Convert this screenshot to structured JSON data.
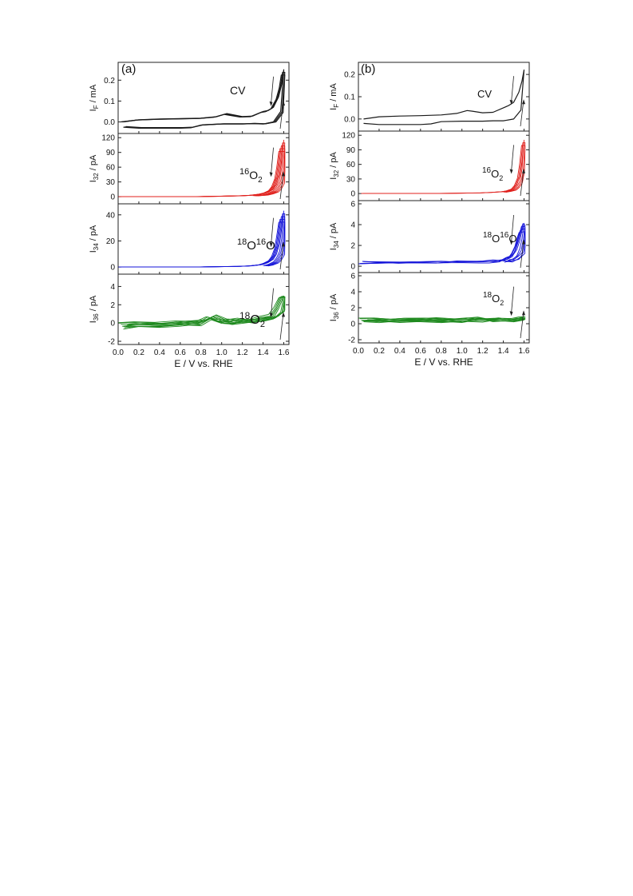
{
  "figure": {
    "xlabel": "E / V vs. RHE",
    "xticks": [
      "0.0",
      "0.2",
      "0.4",
      "0.6",
      "0.8",
      "1.0",
      "1.2",
      "1.4",
      "1.6"
    ]
  },
  "chart_data": [
    {
      "panel": "(a)",
      "type": "line",
      "xlim": [
        0.0,
        1.65
      ],
      "subplots": [
        {
          "key": "cv",
          "ylabel": {
            "main": "I",
            "sub": "F",
            "unit": " / mA"
          },
          "label": "CV",
          "label_sup": "",
          "label_mid": "",
          "color": "#1a1a1a",
          "ylim": [
            -0.04,
            0.27
          ],
          "yticks": [
            0.0,
            0.1,
            0.2
          ],
          "ytick_labels": [
            "0.0",
            "0.1",
            "0.2"
          ],
          "anodic": {
            "x": [
              0.05,
              0.2,
              0.4,
              0.6,
              0.8,
              0.95,
              1.05,
              1.1,
              1.2,
              1.3,
              1.4,
              1.45,
              1.5,
              1.55,
              1.58,
              1.6
            ],
            "y": [
              0.0,
              0.01,
              0.014,
              0.016,
              0.018,
              0.025,
              0.04,
              0.035,
              0.026,
              0.028,
              0.05,
              0.055,
              0.07,
              0.12,
              0.18,
              0.25
            ]
          },
          "cathodic": {
            "x": [
              1.6,
              1.57,
              1.5,
              1.4,
              1.3,
              1.2,
              1.0,
              0.8,
              0.7,
              0.6,
              0.4,
              0.2,
              0.05
            ],
            "y": [
              0.25,
              0.05,
              0.0,
              -0.01,
              -0.008,
              -0.01,
              -0.01,
              -0.015,
              -0.028,
              -0.03,
              -0.03,
              -0.03,
              -0.025
            ]
          },
          "ncurves": 3
        },
        {
          "key": "m32",
          "ylabel": {
            "main": "I",
            "sub": "32",
            "unit": " /  pA"
          },
          "label": "O",
          "label_sup": "16",
          "label_sub": "2",
          "color": "#e0201c",
          "ylim": [
            -8,
            122
          ],
          "yticks": [
            0,
            30,
            60,
            90,
            120
          ],
          "ytick_labels": [
            "0",
            "30",
            "60",
            "90",
            "120"
          ],
          "anodic": {
            "x": [
              0.05,
              0.4,
              0.8,
              1.0,
              1.2,
              1.3,
              1.4,
              1.45,
              1.5,
              1.53,
              1.56,
              1.58,
              1.6
            ],
            "y": [
              0,
              0,
              0.3,
              1,
              2,
              3,
              6,
              9,
              15,
              25,
              45,
              75,
              115
            ]
          },
          "cathodic": {
            "x": [
              1.6,
              1.58,
              1.56,
              1.53,
              1.5,
              1.45,
              1.4,
              1.3
            ],
            "y": [
              115,
              60,
              35,
              20,
              12,
              7,
              4,
              2
            ]
          },
          "ncurves": 5
        },
        {
          "key": "m34",
          "ylabel": {
            "main": "I",
            "sub": "34",
            "unit": " /  pA"
          },
          "label": "O",
          "label_sup": "18",
          "label_mid": "O",
          "label_sup2": "16",
          "color": "#1414d9",
          "ylim": [
            -3,
            46
          ],
          "yticks": [
            0,
            20,
            40
          ],
          "ytick_labels": [
            "0",
            "20",
            "40"
          ],
          "anodic": {
            "x": [
              0.05,
              0.4,
              0.8,
              1.0,
              1.2,
              1.3,
              1.4,
              1.45,
              1.5,
              1.53,
              1.56,
              1.58,
              1.6
            ],
            "y": [
              0,
              0,
              0.1,
              0.3,
              0.6,
              1,
              2,
              3.5,
              6,
              10,
              18,
              30,
              43
            ]
          },
          "cathodic": {
            "x": [
              1.6,
              1.58,
              1.56,
              1.53,
              1.5,
              1.45,
              1.4
            ],
            "y": [
              43,
              22,
              12,
              7,
              4,
              2,
              1
            ]
          },
          "ncurves": 5
        },
        {
          "key": "m36",
          "ylabel": {
            "main": "I",
            "sub": "36",
            "unit": " /  pA"
          },
          "label": "O",
          "label_sup": "18",
          "label_sub": "2",
          "color": "#1f8a1f",
          "ylim": [
            -2,
            5
          ],
          "yticks": [
            -2,
            0,
            2,
            4
          ],
          "ytick_labels": [
            "-2",
            "0",
            "2",
            "4"
          ],
          "anodic": {
            "x": [
              0.05,
              0.2,
              0.4,
              0.6,
              0.8,
              0.9,
              1.0,
              1.1,
              1.2,
              1.3,
              1.4,
              1.5,
              1.55,
              1.6
            ],
            "y": [
              -0.2,
              -0.1,
              -0.2,
              0.0,
              -0.1,
              0.6,
              0.2,
              0.1,
              0.4,
              0.2,
              0.6,
              0.8,
              1.8,
              3.2
            ]
          },
          "cathodic": {
            "x": [
              1.6,
              1.57,
              1.5,
              1.4,
              1.3,
              1.2,
              1.1,
              1.0,
              0.9,
              0.8,
              0.6,
              0.4,
              0.2,
              0.05
            ],
            "y": [
              3.2,
              1.4,
              0.7,
              0.4,
              0.3,
              0.2,
              0.1,
              0.3,
              0.8,
              0.2,
              -0.1,
              -0.3,
              -0.2,
              -0.4
            ]
          },
          "ncurves": 5
        }
      ]
    },
    {
      "panel": "(b)",
      "type": "line",
      "xlim": [
        0.0,
        1.65
      ],
      "subplots": [
        {
          "key": "cv",
          "ylabel": {
            "main": "I",
            "sub": "F",
            "unit": " / mA"
          },
          "label": "CV",
          "label_sup": "",
          "label_mid": "",
          "color": "#1a1a1a",
          "ylim": [
            -0.04,
            0.24
          ],
          "yticks": [
            0.0,
            0.1,
            0.2
          ],
          "ytick_labels": [
            "0.0",
            "0.1",
            "0.2"
          ],
          "anodic": {
            "x": [
              0.05,
              0.2,
              0.4,
              0.6,
              0.8,
              0.95,
              1.05,
              1.1,
              1.2,
              1.3,
              1.4,
              1.45,
              1.5,
              1.55,
              1.58,
              1.6
            ],
            "y": [
              0.0,
              0.01,
              0.013,
              0.015,
              0.018,
              0.025,
              0.038,
              0.035,
              0.028,
              0.03,
              0.05,
              0.06,
              0.075,
              0.12,
              0.17,
              0.22
            ]
          },
          "cathodic": {
            "x": [
              1.6,
              1.57,
              1.5,
              1.4,
              1.3,
              1.2,
              1.0,
              0.8,
              0.7,
              0.6,
              0.4,
              0.2,
              0.05
            ],
            "y": [
              0.22,
              0.04,
              0.0,
              -0.008,
              -0.008,
              -0.01,
              -0.01,
              -0.012,
              -0.022,
              -0.025,
              -0.025,
              -0.025,
              -0.02
            ]
          },
          "ncurves": 1
        },
        {
          "key": "m32",
          "ylabel": {
            "main": "I",
            "sub": "32",
            "unit": " /  pA"
          },
          "label": "O",
          "label_sup": "16",
          "label_sub": "2",
          "color": "#e0201c",
          "ylim": [
            -8,
            122
          ],
          "yticks": [
            0,
            30,
            60,
            90,
            120
          ],
          "ytick_labels": [
            "0",
            "30",
            "60",
            "90",
            "120"
          ],
          "anodic": {
            "x": [
              0.05,
              0.4,
              0.8,
              1.0,
              1.2,
              1.3,
              1.4,
              1.45,
              1.5,
              1.53,
              1.56,
              1.58,
              1.6
            ],
            "y": [
              0,
              0,
              0.3,
              0.8,
              1.5,
              2.5,
              4,
              6,
              10,
              18,
              35,
              65,
              110
            ]
          },
          "cathodic": {
            "x": [
              1.6,
              1.58,
              1.56,
              1.53,
              1.5,
              1.45,
              1.4
            ],
            "y": [
              110,
              50,
              25,
              14,
              8,
              5,
              3
            ]
          },
          "ncurves": 3
        },
        {
          "key": "m34",
          "ylabel": {
            "main": "I",
            "sub": "34",
            "unit": " /  pA"
          },
          "label": "O",
          "label_sup": "18",
          "label_mid": "O",
          "label_sup2": "16",
          "color": "#1414d9",
          "ylim": [
            -0.3,
            6
          ],
          "yticks": [
            0,
            2,
            4,
            6
          ],
          "ytick_labels": [
            "0",
            "2",
            "4",
            "6"
          ],
          "anodic": {
            "x": [
              0.05,
              0.4,
              0.8,
              1.0,
              1.2,
              1.3,
              1.4,
              1.45,
              1.5,
              1.53,
              1.56,
              1.58,
              1.6
            ],
            "y": [
              0.4,
              0.4,
              0.4,
              0.5,
              0.5,
              0.5,
              0.6,
              0.8,
              1.1,
              1.6,
              2.5,
              3.4,
              4.2
            ]
          },
          "cathodic": {
            "x": [
              1.6,
              1.58,
              1.56,
              1.53,
              1.5,
              1.45,
              1.4
            ],
            "y": [
              4.2,
              2.5,
              1.6,
              1.1,
              0.8,
              0.6,
              0.5
            ]
          },
          "ncurves": 5
        },
        {
          "key": "m36",
          "ylabel": {
            "main": "I",
            "sub": "36",
            "unit": " /  pA"
          },
          "label": "O",
          "label_sup": "18",
          "label_sub": "2",
          "color": "#1f8a1f",
          "ylim": [
            -2,
            6
          ],
          "yticks": [
            -2,
            0,
            2,
            4,
            6
          ],
          "ytick_labels": [
            "-2",
            "0",
            "2",
            "4",
            "6"
          ],
          "anodic": {
            "x": [
              0.05,
              0.2,
              0.4,
              0.6,
              0.8,
              1.0,
              1.2,
              1.3,
              1.4,
              1.5,
              1.6
            ],
            "y": [
              0.5,
              0.6,
              0.4,
              0.5,
              0.6,
              0.4,
              0.8,
              0.5,
              0.6,
              0.5,
              0.7
            ]
          },
          "cathodic": {
            "x": [
              1.6,
              1.5,
              1.4,
              1.3,
              1.2,
              1.0,
              0.8,
              0.6,
              0.4,
              0.2,
              0.05
            ],
            "y": [
              0.7,
              0.6,
              0.5,
              0.6,
              0.5,
              0.6,
              0.4,
              0.5,
              0.6,
              0.4,
              0.5
            ]
          },
          "ncurves": 5
        }
      ]
    }
  ]
}
